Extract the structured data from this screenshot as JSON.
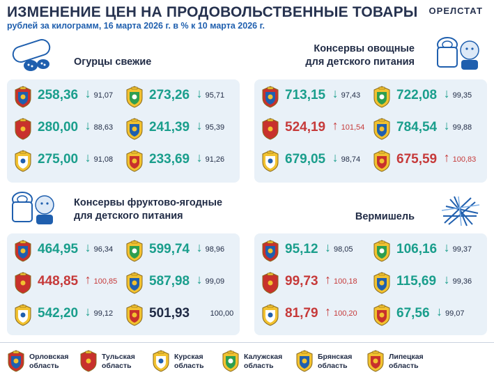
{
  "header": {
    "title": "ИЗМЕНЕНИЕ ЦЕН НА ПРОДОВОЛЬСТВЕННЫЕ ТОВАРЫ",
    "subtitle": "рублей за килограмм, 16 марта 2026 г. в % к 10 марта 2026 г.",
    "brand": "ОРЕЛСТАТ"
  },
  "colors": {
    "down": "#1a9e8c",
    "up": "#c63a3a",
    "flat": "#1f2a44",
    "panel": "#e9f1f8"
  },
  "sections": [
    {
      "title_lines": [
        "Огурцы свежие"
      ],
      "icon": "cucumber-icon",
      "items": [
        {
          "region": "orel",
          "price": "258,36",
          "dir": "down",
          "pct": "91,07"
        },
        {
          "region": "kaluga",
          "price": "273,26",
          "dir": "down",
          "pct": "95,71"
        },
        {
          "region": "tula",
          "price": "280,00",
          "dir": "down",
          "pct": "88,63"
        },
        {
          "region": "bryansk",
          "price": "241,39",
          "dir": "down",
          "pct": "95,39"
        },
        {
          "region": "kursk",
          "price": "275,00",
          "dir": "down",
          "pct": "91,08"
        },
        {
          "region": "lipetsk",
          "price": "233,69",
          "dir": "down",
          "pct": "91,26"
        }
      ]
    },
    {
      "title_lines": [
        "Консервы овощные",
        "для детского питания"
      ],
      "icon": "baby-food-can-icon",
      "items": [
        {
          "region": "orel",
          "price": "713,15",
          "dir": "down",
          "pct": "97,43"
        },
        {
          "region": "kaluga",
          "price": "722,08",
          "dir": "down",
          "pct": "99,35"
        },
        {
          "region": "tula",
          "price": "524,19",
          "dir": "up",
          "pct": "101,54"
        },
        {
          "region": "bryansk",
          "price": "784,54",
          "dir": "down",
          "pct": "99,88"
        },
        {
          "region": "kursk",
          "price": "679,05",
          "dir": "down",
          "pct": "98,74"
        },
        {
          "region": "lipetsk",
          "price": "675,59",
          "dir": "up",
          "pct": "100,83"
        }
      ]
    },
    {
      "title_lines": [
        "Консервы фруктово-ягодные",
        "для детского питания"
      ],
      "icon": "baby-food-can-icon",
      "items": [
        {
          "region": "orel",
          "price": "464,95",
          "dir": "down",
          "pct": "96,34"
        },
        {
          "region": "kaluga",
          "price": "599,74",
          "dir": "down",
          "pct": "98,96"
        },
        {
          "region": "tula",
          "price": "448,85",
          "dir": "up",
          "pct": "100,85"
        },
        {
          "region": "bryansk",
          "price": "587,98",
          "dir": "down",
          "pct": "99,09"
        },
        {
          "region": "kursk",
          "price": "542,20",
          "dir": "down",
          "pct": "99,12"
        },
        {
          "region": "lipetsk",
          "price": "501,93",
          "dir": "flat",
          "pct": "100,00"
        }
      ]
    },
    {
      "title_lines": [
        "Вермишель"
      ],
      "icon": "vermicelli-icon",
      "items": [
        {
          "region": "orel",
          "price": "95,12",
          "dir": "down",
          "pct": "98,05"
        },
        {
          "region": "kaluga",
          "price": "106,16",
          "dir": "down",
          "pct": "99,37"
        },
        {
          "region": "tula",
          "price": "99,73",
          "dir": "up",
          "pct": "100,18"
        },
        {
          "region": "bryansk",
          "price": "115,69",
          "dir": "down",
          "pct": "99,36"
        },
        {
          "region": "kursk",
          "price": "81,79",
          "dir": "up",
          "pct": "100,20"
        },
        {
          "region": "lipetsk",
          "price": "67,56",
          "dir": "down",
          "pct": "99,07"
        }
      ]
    }
  ],
  "legend": [
    {
      "region": "orel",
      "label": "Орловская\nобласть"
    },
    {
      "region": "tula",
      "label": "Тульская\nобласть"
    },
    {
      "region": "kursk",
      "label": "Курская\nобласть"
    },
    {
      "region": "kaluga",
      "label": "Калужская\nобласть"
    },
    {
      "region": "bryansk",
      "label": "Брянская\nобласть"
    },
    {
      "region": "lipetsk",
      "label": "Липецкая\nобласть"
    }
  ]
}
